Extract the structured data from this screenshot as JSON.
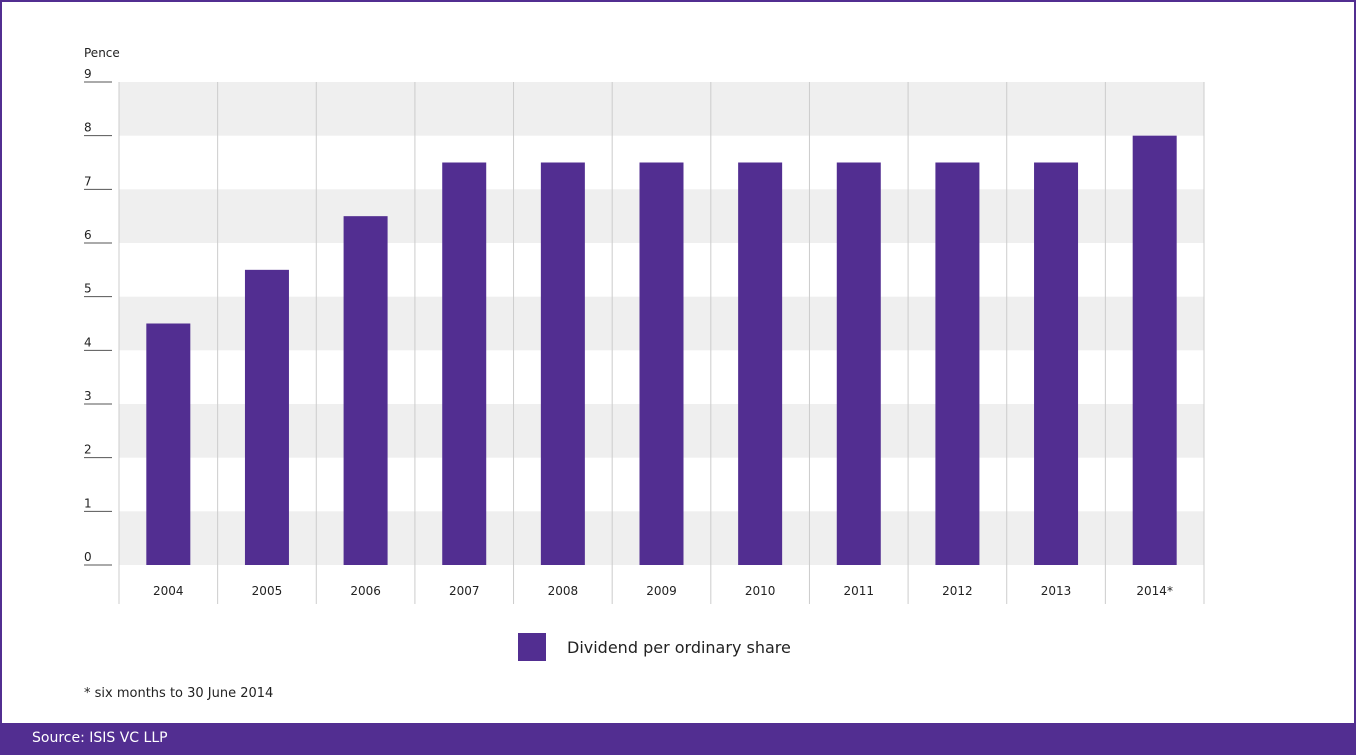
{
  "chart_data": {
    "type": "bar",
    "ylabel": "Pence",
    "categories": [
      "2004",
      "2005",
      "2006",
      "2007",
      "2008",
      "2009",
      "2010",
      "2011",
      "2012",
      "2013",
      "2014*"
    ],
    "series": [
      {
        "name": "Dividend per ordinary share",
        "values": [
          4.5,
          5.5,
          6.5,
          7.5,
          7.5,
          7.5,
          7.5,
          7.5,
          7.5,
          7.5,
          8.0
        ]
      }
    ],
    "ylim": [
      0,
      9
    ],
    "yticks": [
      "0",
      "1",
      "2",
      "3",
      "4",
      "5",
      "6",
      "7",
      "8",
      "9"
    ],
    "grid": "alternating horizontal bands",
    "legend_position": "bottom-center",
    "colors": {
      "bar": "#522e91",
      "band": "#efefef",
      "divider": "#cccccc"
    }
  },
  "footnote": "* six months to 30 June 2014",
  "source": "Source: ISIS VC LLP"
}
